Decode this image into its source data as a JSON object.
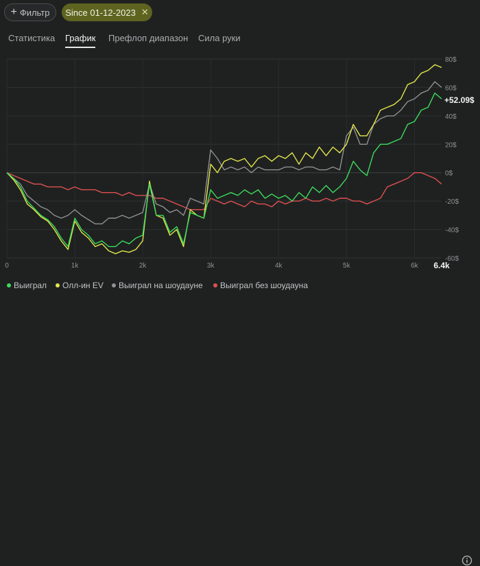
{
  "toolbar": {
    "filter_label": "Фильтр",
    "date_chip_label": "Since 01-12-2023",
    "colors": {
      "chip_bg": "#5e6420"
    }
  },
  "tabs": [
    {
      "label": "Статистика",
      "active": false
    },
    {
      "label": "График",
      "active": true
    },
    {
      "label": "Префлоп диапазон",
      "active": false
    },
    {
      "label": "Сила руки",
      "active": false
    }
  ],
  "chart_data": {
    "type": "line",
    "x_ticks": [
      "0",
      "1k",
      "2k",
      "3k",
      "4k",
      "5k",
      "6k"
    ],
    "x_end_label": "6.4k",
    "y_ticks": [
      "80$",
      "60$",
      "40$",
      "20$",
      "0$",
      "-20$",
      "-40$",
      "-60$"
    ],
    "xlim": [
      0,
      6400
    ],
    "ylim": [
      -60,
      80
    ],
    "final_value_label": "+52.09$",
    "grid": true,
    "legend_position": "bottom-left",
    "series": [
      {
        "name": "Выиграл",
        "color": "#3ddc5c",
        "x": [
          0,
          100,
          200,
          300,
          400,
          500,
          600,
          700,
          800,
          900,
          1000,
          1100,
          1200,
          1300,
          1400,
          1500,
          1600,
          1700,
          1800,
          1900,
          2000,
          2100,
          2200,
          2300,
          2400,
          2500,
          2600,
          2700,
          2800,
          2900,
          3000,
          3100,
          3200,
          3300,
          3400,
          3500,
          3600,
          3700,
          3800,
          3900,
          4000,
          4100,
          4200,
          4300,
          4400,
          4500,
          4600,
          4700,
          4800,
          4900,
          5000,
          5100,
          5200,
          5300,
          5400,
          5500,
          5600,
          5700,
          5800,
          5900,
          6000,
          6100,
          6200,
          6300,
          6400
        ],
        "y": [
          0,
          -4,
          -10,
          -20,
          -25,
          -30,
          -33,
          -38,
          -46,
          -52,
          -32,
          -40,
          -44,
          -50,
          -48,
          -52,
          -52,
          -48,
          -50,
          -46,
          -44,
          -8,
          -30,
          -30,
          -42,
          -38,
          -50,
          -28,
          -30,
          -32,
          -12,
          -18,
          -16,
          -14,
          -16,
          -12,
          -15,
          -12,
          -18,
          -15,
          -18,
          -16,
          -20,
          -14,
          -18,
          -10,
          -14,
          -9,
          -14,
          -10,
          -4,
          8,
          2,
          -2,
          14,
          20,
          20,
          22,
          24,
          34,
          36,
          44,
          46,
          56,
          52
        ]
      },
      {
        "name": "Олл-ин EV",
        "color": "#e3e84a",
        "x": [
          0,
          100,
          200,
          300,
          400,
          500,
          600,
          700,
          800,
          900,
          1000,
          1100,
          1200,
          1300,
          1400,
          1500,
          1600,
          1700,
          1800,
          1900,
          2000,
          2100,
          2200,
          2300,
          2400,
          2500,
          2600,
          2700,
          2800,
          2900,
          3000,
          3100,
          3200,
          3300,
          3400,
          3500,
          3600,
          3700,
          3800,
          3900,
          4000,
          4100,
          4200,
          4300,
          4400,
          4500,
          4600,
          4700,
          4800,
          4900,
          5000,
          5100,
          5200,
          5300,
          5400,
          5500,
          5600,
          5700,
          5800,
          5900,
          6000,
          6100,
          6200,
          6300,
          6400
        ],
        "y": [
          0,
          -5,
          -12,
          -22,
          -26,
          -31,
          -34,
          -40,
          -48,
          -54,
          -34,
          -42,
          -46,
          -52,
          -50,
          -55,
          -57,
          -55,
          -56,
          -54,
          -48,
          -6,
          -30,
          -32,
          -44,
          -40,
          -52,
          -26,
          -30,
          -32,
          6,
          0,
          8,
          10,
          8,
          10,
          4,
          10,
          12,
          8,
          12,
          10,
          14,
          6,
          14,
          10,
          18,
          12,
          18,
          14,
          20,
          34,
          26,
          26,
          34,
          44,
          46,
          48,
          52,
          62,
          64,
          70,
          72,
          76,
          74
        ]
      },
      {
        "name": "Выиграл на шоудауне",
        "color": "#8f9192",
        "x": [
          0,
          100,
          200,
          300,
          400,
          500,
          600,
          700,
          800,
          900,
          1000,
          1100,
          1200,
          1300,
          1400,
          1500,
          1600,
          1700,
          1800,
          1900,
          2000,
          2100,
          2200,
          2300,
          2400,
          2500,
          2600,
          2700,
          2800,
          2900,
          3000,
          3100,
          3200,
          3300,
          3400,
          3500,
          3600,
          3700,
          3800,
          3900,
          4000,
          4100,
          4200,
          4300,
          4400,
          4500,
          4600,
          4700,
          4800,
          4900,
          5000,
          5100,
          5200,
          5300,
          5400,
          5500,
          5600,
          5700,
          5800,
          5900,
          6000,
          6100,
          6200,
          6300,
          6400
        ],
        "y": [
          0,
          -4,
          -8,
          -16,
          -20,
          -24,
          -26,
          -30,
          -32,
          -30,
          -26,
          -30,
          -33,
          -36,
          -36,
          -32,
          -32,
          -30,
          -32,
          -30,
          -28,
          -8,
          -22,
          -24,
          -28,
          -26,
          -30,
          -18,
          -20,
          -22,
          16,
          10,
          2,
          4,
          2,
          4,
          0,
          4,
          2,
          2,
          2,
          4,
          4,
          2,
          4,
          4,
          2,
          2,
          4,
          2,
          26,
          32,
          20,
          20,
          34,
          38,
          40,
          40,
          44,
          50,
          52,
          56,
          58,
          64,
          60
        ]
      },
      {
        "name": "Выиграл без шоудауна",
        "color": "#e05050",
        "x": [
          0,
          100,
          200,
          300,
          400,
          500,
          600,
          700,
          800,
          900,
          1000,
          1100,
          1200,
          1300,
          1400,
          1500,
          1600,
          1700,
          1800,
          1900,
          2000,
          2100,
          2200,
          2300,
          2400,
          2500,
          2600,
          2700,
          2800,
          2900,
          3000,
          3100,
          3200,
          3300,
          3400,
          3500,
          3600,
          3700,
          3800,
          3900,
          4000,
          4100,
          4200,
          4300,
          4400,
          4500,
          4600,
          4700,
          4800,
          4900,
          5000,
          5100,
          5200,
          5300,
          5400,
          5500,
          5600,
          5700,
          5800,
          5900,
          6000,
          6100,
          6200,
          6300,
          6400
        ],
        "y": [
          0,
          -2,
          -4,
          -6,
          -8,
          -8,
          -10,
          -10,
          -10,
          -12,
          -10,
          -12,
          -12,
          -12,
          -14,
          -14,
          -14,
          -16,
          -14,
          -16,
          -16,
          -16,
          -18,
          -18,
          -20,
          -22,
          -24,
          -26,
          -26,
          -26,
          -18,
          -20,
          -22,
          -20,
          -22,
          -24,
          -20,
          -22,
          -22,
          -24,
          -20,
          -22,
          -20,
          -20,
          -18,
          -20,
          -20,
          -18,
          -20,
          -18,
          -18,
          -20,
          -20,
          -22,
          -20,
          -18,
          -10,
          -8,
          -6,
          -4,
          0,
          0,
          -2,
          -4,
          -8
        ]
      }
    ]
  }
}
